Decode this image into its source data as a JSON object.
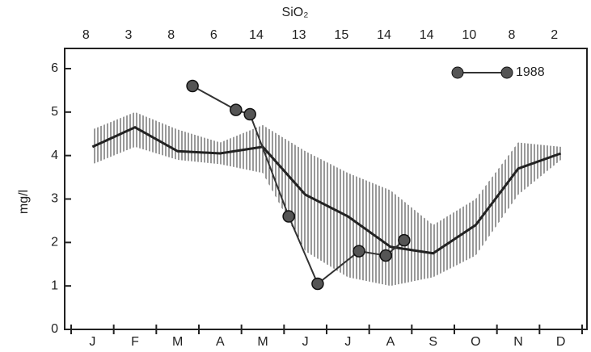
{
  "chart_data": {
    "type": "line",
    "title": "SiO₂",
    "y_label": "mg/l",
    "sample_counts": [
      8,
      3,
      8,
      6,
      14,
      13,
      15,
      14,
      14,
      10,
      8,
      2
    ],
    "categories": [
      "J",
      "F",
      "M",
      "A",
      "M",
      "J",
      "J",
      "A",
      "S",
      "O",
      "N",
      "D"
    ],
    "ylim": [
      0,
      6
    ],
    "yticks": [
      0,
      1,
      2,
      3,
      4,
      5,
      6
    ],
    "mean": {
      "color": "#222",
      "values": [
        4.2,
        4.65,
        4.1,
        4.05,
        4.2,
        3.1,
        2.6,
        1.9,
        1.75,
        2.4,
        3.7,
        4.05
      ]
    },
    "band": {
      "color": "#333",
      "lower": [
        3.8,
        4.2,
        3.9,
        3.8,
        3.6,
        1.8,
        1.2,
        1.0,
        1.2,
        1.7,
        3.1,
        3.9
      ],
      "upper": [
        4.6,
        5.0,
        4.6,
        4.3,
        4.7,
        4.1,
        3.6,
        3.2,
        2.4,
        3.0,
        4.3,
        4.2
      ]
    },
    "xlim": [
      0,
      12
    ],
    "series": [
      {
        "name": "1988",
        "color": "#333",
        "x": [
          2.85,
          3.87,
          4.2,
          5.11,
          5.79,
          6.76,
          7.39,
          7.82
        ],
        "values": [
          5.6,
          5.05,
          4.95,
          2.6,
          1.05,
          1.8,
          1.7,
          2.05
        ]
      }
    ],
    "legend": "upper right"
  }
}
